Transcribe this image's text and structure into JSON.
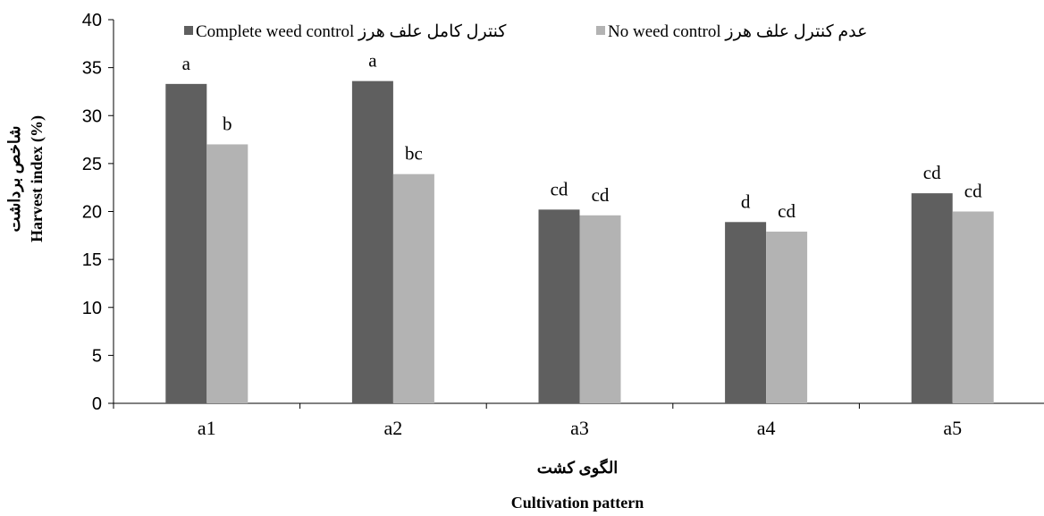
{
  "chart_data": {
    "type": "bar",
    "categories": [
      "a1",
      "a2",
      "a3",
      "a4",
      "a5"
    ],
    "series": [
      {
        "name": "Complete weed control کنترل کامل علف هرز",
        "color": "#5f5f5f",
        "values": [
          33.3,
          33.6,
          20.2,
          18.9,
          21.9
        ],
        "letters": [
          "a",
          "a",
          "cd",
          "d",
          "cd"
        ]
      },
      {
        "name": "No weed control عدم کنترل علف هرز",
        "color": "#b3b3b3",
        "values": [
          27.0,
          23.9,
          19.6,
          17.9,
          20.0
        ],
        "letters": [
          "b",
          "bc",
          "cd",
          "cd",
          "cd"
        ]
      }
    ],
    "ylim": [
      0,
      40
    ],
    "ytick_step": 5,
    "xlabel_fa": "الگوی کشت",
    "xlabel": "Cultivation pattern",
    "ylabel_fa": "شاخص برداشت",
    "ylabel": "Harvest index (%)",
    "grid": false,
    "legend_position": "top"
  }
}
